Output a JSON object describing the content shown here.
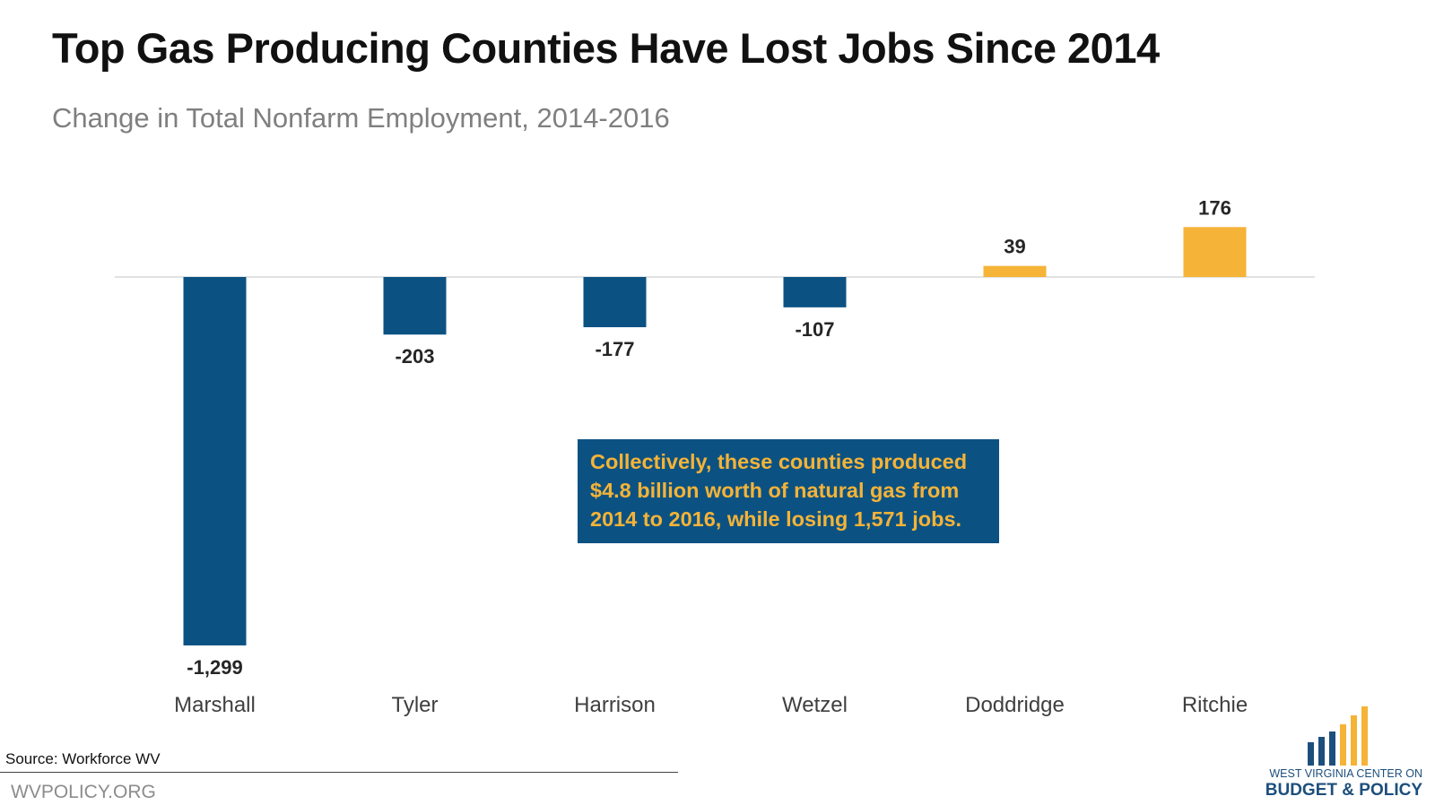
{
  "title": "Top Gas Producing Counties Have Lost Jobs Since 2014",
  "subtitle": "Change in Total Nonfarm Employment, 2014-2016",
  "chart_data": {
    "type": "bar",
    "title": "Top Gas Producing Counties Have Lost Jobs Since 2014",
    "subtitle": "Change in Total Nonfarm Employment, 2014-2016",
    "categories": [
      "Marshall",
      "Tyler",
      "Harrison",
      "Wetzel",
      "Doddridge",
      "Ritchie"
    ],
    "values": [
      -1299,
      -203,
      -177,
      -107,
      39,
      176
    ],
    "value_labels": [
      "-1,299",
      "-203",
      "-177",
      "-107",
      "39",
      "176"
    ],
    "xlabel": "",
    "ylabel": "",
    "ylim": [
      -1299,
      176
    ],
    "grid": false,
    "legend": "none",
    "colors": {
      "negative": "#0b5283",
      "positive": "#f5b337",
      "axis": "#d9d9d9",
      "label_text": "#262626",
      "category_text": "#3f3f3f"
    },
    "annotation": "Collectively, these counties produced $4.8 billion worth of natural gas from 2014 to 2016, while losing 1,571 jobs."
  },
  "callout": {
    "text": "Collectively, these counties produced $4.8 billion worth of natural gas from 2014 to 2016, while losing 1,571 jobs.",
    "background": "#0b5283",
    "color": "#f5b337"
  },
  "footer": {
    "source": "Source: Workforce WV",
    "site": "WVPOLICY.ORG"
  },
  "logo": {
    "line1": "WEST VIRGINIA CENTER ON",
    "line2": "BUDGET & POLICY",
    "bar_colors": [
      "#1d4f7c",
      "#1d4f7c",
      "#1d4f7c",
      "#f5b337",
      "#f5b337",
      "#f5b337"
    ]
  }
}
